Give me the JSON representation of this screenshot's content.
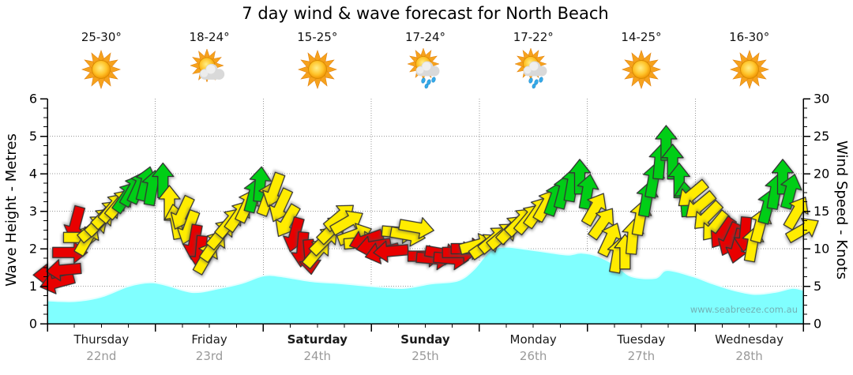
{
  "title": "7 day wind & wave forecast for North Beach",
  "watermark": "www.seabreeze.com.au",
  "days": [
    {
      "name": "Thursday",
      "date": "22nd",
      "temp": "25-30°",
      "icon": "sunny",
      "bold": false
    },
    {
      "name": "Friday",
      "date": "23rd",
      "temp": "18-24°",
      "icon": "sun-cloud",
      "bold": false
    },
    {
      "name": "Saturday",
      "date": "24th",
      "temp": "15-25°",
      "icon": "sunny",
      "bold": true
    },
    {
      "name": "Sunday",
      "date": "25th",
      "temp": "17-24°",
      "icon": "sun-cloud-rain",
      "bold": true
    },
    {
      "name": "Monday",
      "date": "26th",
      "temp": "17-22°",
      "icon": "sun-cloud-rain",
      "bold": false
    },
    {
      "name": "Tuesday",
      "date": "27th",
      "temp": "14-25°",
      "icon": "sunny",
      "bold": false
    },
    {
      "name": "Wednesday",
      "date": "28th",
      "temp": "16-30°",
      "icon": "sunny",
      "bold": false
    }
  ],
  "chart_data": {
    "type": "combo: area (wave height) + wind-direction arrows (wind speed)",
    "title": "7 day wind & wave forecast for North Beach",
    "grid": true,
    "legend": "none",
    "left_axis": {
      "label": "Wave Height - Metres",
      "min": 0,
      "max": 6,
      "ticks": [
        0,
        1,
        2,
        3,
        4,
        5,
        6
      ],
      "minor_step": 0.25
    },
    "right_axis": {
      "label": "Wind Speed - Knots",
      "min": 0,
      "max": 30,
      "ticks": [
        0,
        5,
        10,
        15,
        20,
        25,
        30
      ],
      "minor_step": 1.25
    },
    "x_axis": {
      "days": 7,
      "minor_ticks_per_day": 4
    },
    "wave_height_m": [
      [
        0.0,
        0.62
      ],
      [
        0.25,
        0.6
      ],
      [
        0.5,
        0.72
      ],
      [
        0.75,
        1.0
      ],
      [
        0.95,
        1.1
      ],
      [
        1.1,
        1.03
      ],
      [
        1.35,
        0.84
      ],
      [
        1.6,
        0.95
      ],
      [
        1.8,
        1.08
      ],
      [
        2.0,
        1.28
      ],
      [
        2.15,
        1.27
      ],
      [
        2.45,
        1.13
      ],
      [
        2.7,
        1.08
      ],
      [
        3.0,
        1.0
      ],
      [
        3.3,
        0.95
      ],
      [
        3.55,
        1.07
      ],
      [
        3.8,
        1.15
      ],
      [
        3.95,
        1.45
      ],
      [
        4.1,
        1.95
      ],
      [
        4.25,
        2.05
      ],
      [
        4.45,
        1.98
      ],
      [
        4.65,
        1.9
      ],
      [
        4.82,
        1.84
      ],
      [
        4.95,
        1.89
      ],
      [
        5.1,
        1.8
      ],
      [
        5.27,
        1.55
      ],
      [
        5.41,
        1.26
      ],
      [
        5.63,
        1.22
      ],
      [
        5.74,
        1.43
      ],
      [
        5.98,
        1.26
      ],
      [
        6.15,
        1.08
      ],
      [
        6.35,
        0.9
      ],
      [
        6.55,
        0.79
      ],
      [
        6.75,
        0.85
      ],
      [
        6.9,
        0.95
      ],
      [
        7.0,
        0.9
      ]
    ],
    "wind_arrows_t_knots_dir_color": [
      [
        0.03,
        6.5,
        270,
        "red"
      ],
      [
        0.09,
        5.0,
        255,
        "red"
      ],
      [
        0.15,
        7.0,
        265,
        "red"
      ],
      [
        0.21,
        9.5,
        90,
        "red"
      ],
      [
        0.26,
        11.5,
        195,
        "red"
      ],
      [
        0.31,
        11.5,
        90,
        "yellow"
      ],
      [
        0.37,
        13.0,
        30,
        "yellow"
      ],
      [
        0.43,
        14.0,
        50,
        "yellow"
      ],
      [
        0.49,
        15.0,
        45,
        "yellow"
      ],
      [
        0.55,
        16.0,
        45,
        "yellow"
      ],
      [
        0.61,
        17.0,
        40,
        "yellow"
      ],
      [
        0.67,
        17.5,
        40,
        "yellow"
      ],
      [
        0.73,
        18.5,
        35,
        "green"
      ],
      [
        0.79,
        19.5,
        30,
        "green"
      ],
      [
        0.85,
        20.0,
        25,
        "green"
      ],
      [
        0.91,
        20.5,
        15,
        "green"
      ],
      [
        0.97,
        20.0,
        10,
        "green"
      ],
      [
        1.07,
        21.0,
        0,
        "green"
      ],
      [
        1.13,
        18.0,
        0,
        "yellow"
      ],
      [
        1.19,
        15.5,
        350,
        "yellow"
      ],
      [
        1.25,
        13.0,
        205,
        "yellow"
      ],
      [
        1.31,
        11.0,
        200,
        "yellow"
      ],
      [
        1.36,
        9.0,
        190,
        "red"
      ],
      [
        1.42,
        7.5,
        185,
        "red"
      ],
      [
        1.47,
        10.5,
        30,
        "yellow"
      ],
      [
        1.54,
        12.0,
        35,
        "yellow"
      ],
      [
        1.61,
        13.5,
        40,
        "yellow"
      ],
      [
        1.69,
        15.0,
        40,
        "yellow"
      ],
      [
        1.77,
        16.0,
        35,
        "yellow"
      ],
      [
        1.85,
        17.5,
        25,
        "yellow"
      ],
      [
        1.91,
        19.0,
        15,
        "green"
      ],
      [
        1.97,
        20.5,
        5,
        "green"
      ],
      [
        2.04,
        18.5,
        20,
        "yellow"
      ],
      [
        2.1,
        16.0,
        200,
        "yellow"
      ],
      [
        2.16,
        14.0,
        205,
        "yellow"
      ],
      [
        2.22,
        12.0,
        210,
        "yellow"
      ],
      [
        2.29,
        10.0,
        195,
        "red"
      ],
      [
        2.36,
        8.0,
        185,
        "red"
      ],
      [
        2.43,
        7.0,
        175,
        "red"
      ],
      [
        2.5,
        11.0,
        40,
        "yellow"
      ],
      [
        2.57,
        12.5,
        45,
        "yellow"
      ],
      [
        2.64,
        14.0,
        45,
        "yellow"
      ],
      [
        2.71,
        15.5,
        50,
        "yellow"
      ],
      [
        2.78,
        14.5,
        60,
        "yellow"
      ],
      [
        2.85,
        12.5,
        70,
        "yellow"
      ],
      [
        2.91,
        11.0,
        85,
        "yellow"
      ],
      [
        2.95,
        10.5,
        250,
        "red"
      ],
      [
        3.02,
        10.0,
        260,
        "red"
      ],
      [
        3.1,
        9.0,
        255,
        "red"
      ],
      [
        3.18,
        9.5,
        265,
        "red"
      ],
      [
        3.26,
        12.0,
        95,
        "yellow"
      ],
      [
        3.34,
        11.5,
        100,
        "yellow"
      ],
      [
        3.42,
        12.5,
        100,
        "yellow"
      ],
      [
        3.5,
        9.0,
        90,
        "red"
      ],
      [
        3.58,
        8.5,
        95,
        "red"
      ],
      [
        3.66,
        9.0,
        100,
        "red"
      ],
      [
        3.74,
        8.5,
        95,
        "red"
      ],
      [
        3.82,
        9.5,
        90,
        "red"
      ],
      [
        3.9,
        10.0,
        90,
        "red"
      ],
      [
        3.98,
        11.0,
        75,
        "yellow"
      ],
      [
        4.06,
        11.5,
        55,
        "yellow"
      ],
      [
        4.14,
        12.5,
        50,
        "yellow"
      ],
      [
        4.22,
        13.0,
        50,
        "yellow"
      ],
      [
        4.3,
        14.0,
        45,
        "yellow"
      ],
      [
        4.38,
        15.0,
        45,
        "yellow"
      ],
      [
        4.46,
        15.5,
        40,
        "yellow"
      ],
      [
        4.54,
        16.5,
        35,
        "yellow"
      ],
      [
        4.62,
        17.5,
        30,
        "yellow"
      ],
      [
        4.7,
        18.5,
        20,
        "green"
      ],
      [
        4.78,
        19.5,
        15,
        "green"
      ],
      [
        4.86,
        20.5,
        10,
        "green"
      ],
      [
        4.93,
        21.5,
        0,
        "green"
      ],
      [
        5.0,
        19.5,
        10,
        "green"
      ],
      [
        5.07,
        17.0,
        30,
        "yellow"
      ],
      [
        5.14,
        15.0,
        35,
        "yellow"
      ],
      [
        5.21,
        13.0,
        25,
        "yellow"
      ],
      [
        5.28,
        11.0,
        10,
        "yellow"
      ],
      [
        5.35,
        11.5,
        0,
        "yellow"
      ],
      [
        5.42,
        13.5,
        5,
        "yellow"
      ],
      [
        5.49,
        16.0,
        10,
        "yellow"
      ],
      [
        5.55,
        18.5,
        10,
        "green"
      ],
      [
        5.61,
        21.0,
        10,
        "green"
      ],
      [
        5.67,
        23.5,
        5,
        "green"
      ],
      [
        5.73,
        26.0,
        0,
        "green"
      ],
      [
        5.79,
        23.5,
        0,
        "green"
      ],
      [
        5.85,
        21.0,
        0,
        "green"
      ],
      [
        5.91,
        18.5,
        355,
        "green"
      ],
      [
        5.97,
        16.0,
        230,
        "yellow"
      ],
      [
        6.04,
        14.5,
        230,
        "yellow"
      ],
      [
        6.11,
        13.0,
        225,
        "yellow"
      ],
      [
        6.18,
        11.5,
        220,
        "yellow"
      ],
      [
        6.25,
        10.5,
        215,
        "red"
      ],
      [
        6.32,
        9.5,
        205,
        "red"
      ],
      [
        6.39,
        8.5,
        195,
        "red"
      ],
      [
        6.46,
        10.0,
        185,
        "red"
      ],
      [
        6.53,
        12.5,
        10,
        "yellow"
      ],
      [
        6.6,
        15.0,
        15,
        "yellow"
      ],
      [
        6.67,
        17.5,
        15,
        "green"
      ],
      [
        6.74,
        19.5,
        10,
        "green"
      ],
      [
        6.81,
        21.5,
        0,
        "green"
      ],
      [
        6.88,
        19.5,
        15,
        "green"
      ],
      [
        6.94,
        16.5,
        30,
        "yellow"
      ],
      [
        7.0,
        13.5,
        60,
        "yellow"
      ]
    ],
    "colors": {
      "wave_fill": "#80FFFF",
      "wave_edge": "#E6FFFF",
      "arrow_red": "#E80000",
      "arrow_yellow": "#FFEC00",
      "arrow_green": "#00CE16",
      "arrow_outline": "#333333",
      "grid": "#999999",
      "axis": "#000000",
      "date_text": "#999999"
    }
  }
}
